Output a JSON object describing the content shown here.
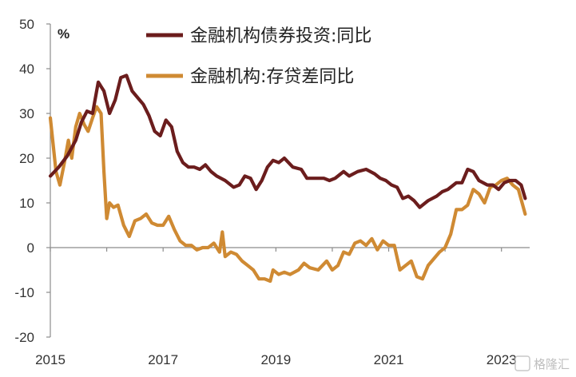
{
  "chart_data": {
    "type": "line",
    "unit_label": "%",
    "ylim": [
      -20,
      50
    ],
    "yticks": [
      -20,
      -10,
      0,
      10,
      20,
      30,
      40,
      50
    ],
    "xlim": [
      2015.0,
      2023.5
    ],
    "xticks": [
      2015,
      2017,
      2019,
      2021,
      2023
    ],
    "xtick_labels": [
      "2015",
      "2017",
      "2019",
      "2021",
      "2023"
    ],
    "grid": false,
    "legend_position": "top-center",
    "series": [
      {
        "name": "金融机构债券投资:同比",
        "color": "#6b1d1d",
        "points": [
          [
            2015.0,
            16.0
          ],
          [
            2015.15,
            18.0
          ],
          [
            2015.3,
            20.5
          ],
          [
            2015.45,
            24.0
          ],
          [
            2015.55,
            28.0
          ],
          [
            2015.65,
            30.5
          ],
          [
            2015.75,
            30.0
          ],
          [
            2015.85,
            37.0
          ],
          [
            2015.95,
            35.0
          ],
          [
            2016.05,
            30.0
          ],
          [
            2016.15,
            33.0
          ],
          [
            2016.25,
            38.0
          ],
          [
            2016.35,
            38.5
          ],
          [
            2016.45,
            35.0
          ],
          [
            2016.55,
            33.5
          ],
          [
            2016.65,
            32.0
          ],
          [
            2016.75,
            29.5
          ],
          [
            2016.85,
            26.0
          ],
          [
            2016.95,
            25.0
          ],
          [
            2017.05,
            28.5
          ],
          [
            2017.15,
            27.0
          ],
          [
            2017.25,
            21.5
          ],
          [
            2017.35,
            19.0
          ],
          [
            2017.45,
            18.0
          ],
          [
            2017.55,
            18.0
          ],
          [
            2017.65,
            17.5
          ],
          [
            2017.75,
            18.5
          ],
          [
            2017.85,
            17.0
          ],
          [
            2017.95,
            16.0
          ],
          [
            2018.1,
            15.0
          ],
          [
            2018.25,
            13.5
          ],
          [
            2018.35,
            14.0
          ],
          [
            2018.45,
            16.0
          ],
          [
            2018.55,
            15.5
          ],
          [
            2018.65,
            13.0
          ],
          [
            2018.75,
            15.0
          ],
          [
            2018.85,
            18.0
          ],
          [
            2018.95,
            19.5
          ],
          [
            2019.05,
            19.0
          ],
          [
            2019.15,
            20.0
          ],
          [
            2019.3,
            18.0
          ],
          [
            2019.45,
            17.5
          ],
          [
            2019.55,
            15.5
          ],
          [
            2019.7,
            15.5
          ],
          [
            2019.85,
            15.5
          ],
          [
            2019.95,
            15.0
          ],
          [
            2020.05,
            15.5
          ],
          [
            2020.2,
            17.0
          ],
          [
            2020.3,
            16.0
          ],
          [
            2020.45,
            17.0
          ],
          [
            2020.6,
            17.5
          ],
          [
            2020.75,
            16.5
          ],
          [
            2020.85,
            15.5
          ],
          [
            2020.95,
            15.0
          ],
          [
            2021.05,
            14.0
          ],
          [
            2021.15,
            13.5
          ],
          [
            2021.25,
            11.0
          ],
          [
            2021.35,
            11.5
          ],
          [
            2021.45,
            10.5
          ],
          [
            2021.55,
            9.0
          ],
          [
            2021.7,
            10.5
          ],
          [
            2021.85,
            11.5
          ],
          [
            2021.95,
            12.5
          ],
          [
            2022.05,
            13.0
          ],
          [
            2022.2,
            14.5
          ],
          [
            2022.3,
            14.5
          ],
          [
            2022.4,
            17.5
          ],
          [
            2022.5,
            17.0
          ],
          [
            2022.6,
            15.0
          ],
          [
            2022.75,
            14.0
          ],
          [
            2022.85,
            14.0
          ],
          [
            2022.95,
            13.0
          ],
          [
            2023.05,
            14.5
          ],
          [
            2023.15,
            15.0
          ],
          [
            2023.25,
            15.0
          ],
          [
            2023.35,
            14.0
          ],
          [
            2023.42,
            11.0
          ]
        ]
      },
      {
        "name": "金融机构:存贷差同比",
        "color": "#cf8a33",
        "points": [
          [
            2015.0,
            29.0
          ],
          [
            2015.1,
            17.0
          ],
          [
            2015.17,
            14.0
          ],
          [
            2015.25,
            19.0
          ],
          [
            2015.32,
            24.0
          ],
          [
            2015.38,
            20.0
          ],
          [
            2015.45,
            27.0
          ],
          [
            2015.52,
            30.0
          ],
          [
            2015.6,
            27.5
          ],
          [
            2015.67,
            26.0
          ],
          [
            2015.75,
            29.0
          ],
          [
            2015.82,
            31.5
          ],
          [
            2015.9,
            30.0
          ],
          [
            2015.95,
            17.0
          ],
          [
            2016.0,
            6.5
          ],
          [
            2016.05,
            10.0
          ],
          [
            2016.12,
            9.0
          ],
          [
            2016.2,
            9.5
          ],
          [
            2016.3,
            5.0
          ],
          [
            2016.4,
            2.5
          ],
          [
            2016.5,
            6.0
          ],
          [
            2016.6,
            6.5
          ],
          [
            2016.7,
            7.5
          ],
          [
            2016.8,
            5.5
          ],
          [
            2016.9,
            5.0
          ],
          [
            2017.0,
            5.0
          ],
          [
            2017.1,
            7.0
          ],
          [
            2017.2,
            4.0
          ],
          [
            2017.3,
            1.5
          ],
          [
            2017.4,
            0.5
          ],
          [
            2017.5,
            0.5
          ],
          [
            2017.6,
            -0.5
          ],
          [
            2017.7,
            0.0
          ],
          [
            2017.8,
            0.0
          ],
          [
            2017.9,
            1.0
          ],
          [
            2018.0,
            -1.0
          ],
          [
            2018.05,
            3.5
          ],
          [
            2018.1,
            -2.0
          ],
          [
            2018.2,
            -1.0
          ],
          [
            2018.3,
            -1.5
          ],
          [
            2018.4,
            -3.0
          ],
          [
            2018.5,
            -4.0
          ],
          [
            2018.6,
            -5.0
          ],
          [
            2018.7,
            -7.0
          ],
          [
            2018.8,
            -7.0
          ],
          [
            2018.9,
            -7.5
          ],
          [
            2018.95,
            -5.0
          ],
          [
            2019.05,
            -6.0
          ],
          [
            2019.15,
            -5.5
          ],
          [
            2019.25,
            -6.0
          ],
          [
            2019.4,
            -5.0
          ],
          [
            2019.5,
            -3.5
          ],
          [
            2019.6,
            -4.5
          ],
          [
            2019.75,
            -5.0
          ],
          [
            2019.9,
            -3.0
          ],
          [
            2020.0,
            -5.0
          ],
          [
            2020.1,
            -4.0
          ],
          [
            2020.2,
            -1.0
          ],
          [
            2020.3,
            -1.5
          ],
          [
            2020.4,
            1.0
          ],
          [
            2020.5,
            1.5
          ],
          [
            2020.6,
            0.5
          ],
          [
            2020.7,
            2.0
          ],
          [
            2020.8,
            -0.5
          ],
          [
            2020.9,
            1.5
          ],
          [
            2021.0,
            0.5
          ],
          [
            2021.1,
            0.5
          ],
          [
            2021.2,
            -5.0
          ],
          [
            2021.3,
            -4.0
          ],
          [
            2021.4,
            -3.0
          ],
          [
            2021.5,
            -6.5
          ],
          [
            2021.6,
            -7.0
          ],
          [
            2021.7,
            -4.0
          ],
          [
            2021.8,
            -2.5
          ],
          [
            2021.9,
            -1.0
          ],
          [
            2022.0,
            0.0
          ],
          [
            2022.1,
            3.0
          ],
          [
            2022.2,
            8.5
          ],
          [
            2022.3,
            8.5
          ],
          [
            2022.4,
            9.5
          ],
          [
            2022.5,
            13.0
          ],
          [
            2022.6,
            12.0
          ],
          [
            2022.7,
            10.0
          ],
          [
            2022.8,
            13.5
          ],
          [
            2022.9,
            14.0
          ],
          [
            2023.0,
            15.0
          ],
          [
            2023.1,
            15.5
          ],
          [
            2023.2,
            14.0
          ],
          [
            2023.3,
            13.0
          ],
          [
            2023.42,
            7.5
          ]
        ]
      }
    ]
  },
  "watermark": "格隆汇"
}
